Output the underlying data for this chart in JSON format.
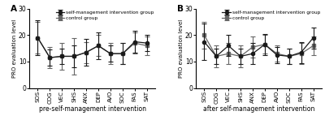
{
  "categories": [
    "SOS",
    "COG",
    "VEC",
    "SHS",
    "ANX",
    "DEP",
    "AVO",
    "SOC",
    "FAS",
    "SAT"
  ],
  "panel_A": {
    "title": "A",
    "xlabel": "pre-self-management intervention",
    "intervention_mean": [
      19,
      11.5,
      12,
      12,
      13.5,
      16,
      13,
      13,
      17.5,
      17
    ],
    "intervention_err": [
      6.5,
      3.0,
      3.0,
      4.0,
      5.0,
      5.0,
      3.0,
      4.0,
      4.0,
      3.0
    ],
    "control_mean": [
      19,
      11.5,
      12,
      12,
      13.5,
      16,
      13,
      13,
      17,
      16
    ],
    "control_err": [
      6.0,
      4.0,
      5.0,
      7.0,
      4.0,
      4.0,
      4.0,
      4.0,
      4.0,
      3.5
    ]
  },
  "panel_B": {
    "title": "B",
    "xlabel": "after self-management intervention",
    "intervention_mean": [
      17.5,
      12,
      16,
      12,
      13,
      16.5,
      12.5,
      12,
      13.5,
      19
    ],
    "intervention_err": [
      7.0,
      3.0,
      4.0,
      3.0,
      4.0,
      4.0,
      3.0,
      3.0,
      4.0,
      4.0
    ],
    "control_mean": [
      20,
      12,
      13,
      12,
      15.5,
      16.5,
      13,
      12,
      13,
      16
    ],
    "control_err": [
      5.0,
      4.0,
      4.0,
      4.0,
      4.0,
      3.5,
      3.0,
      3.0,
      4.0,
      3.5
    ]
  },
  "ylabel": "PRO evaluation level",
  "legend_intervention": "self-management intervention group",
  "legend_control": "control group",
  "ylim": [
    0,
    30
  ],
  "yticks": [
    0,
    10,
    20,
    30
  ],
  "color_intervention": "#1a1a1a",
  "color_control": "#666666",
  "bg_color": "#ffffff",
  "marker_intervention": "o",
  "marker_control": "s",
  "markersize": 3.0,
  "linewidth": 0.9,
  "elinewidth": 0.8,
  "capsize": 2.0,
  "capthick": 0.8
}
